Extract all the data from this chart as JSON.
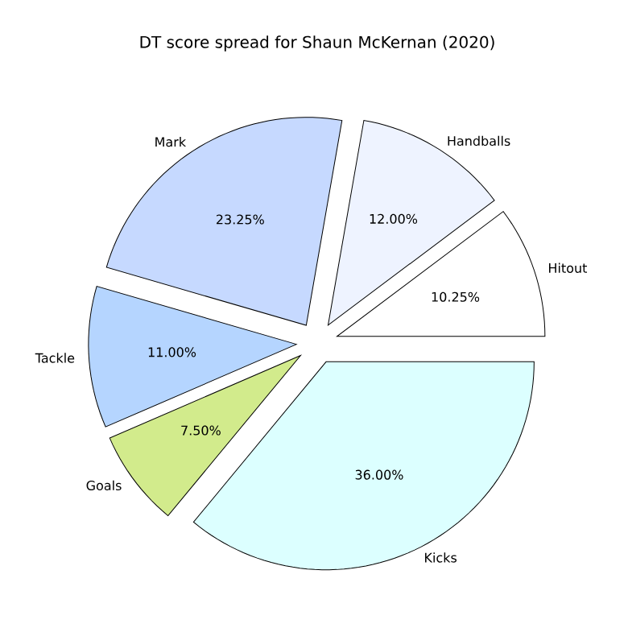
{
  "chart_data": {
    "type": "pie",
    "title": "DT score spread for Shaun McKernan (2020)",
    "categories": [
      "Hitout",
      "Handballs",
      "Mark",
      "Tackle",
      "Goals",
      "Kicks"
    ],
    "values": [
      10.25,
      12.0,
      23.25,
      11.0,
      7.5,
      36.0
    ],
    "value_labels": [
      "10.25%",
      "12.00%",
      "23.25%",
      "11.00%",
      "7.50%",
      "36.00%"
    ],
    "colors": [
      "#ffffff",
      "#eef3ff",
      "#c6d9ff",
      "#b5d5ff",
      "#d2eb8c",
      "#dcffff"
    ]
  }
}
